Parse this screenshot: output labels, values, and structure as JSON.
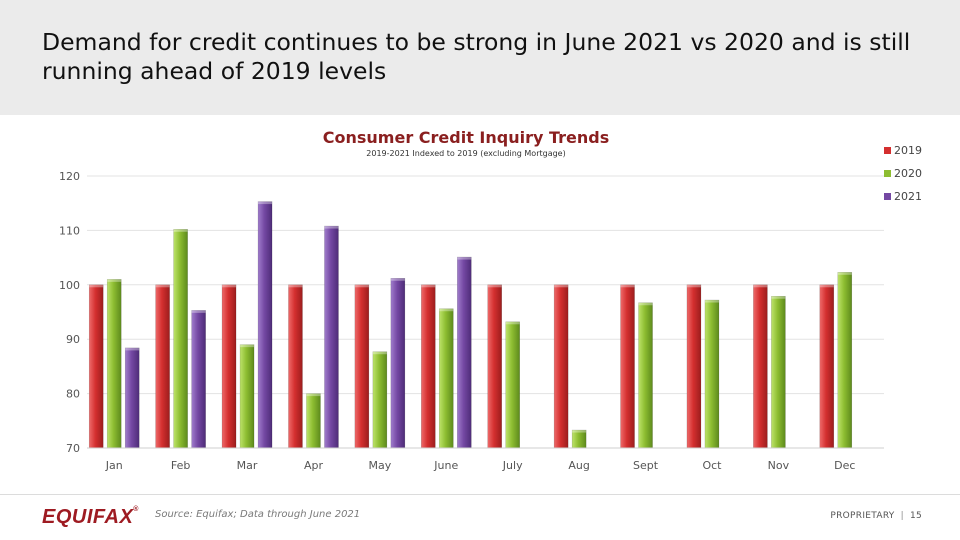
{
  "slide": {
    "title": "Demand for credit continues to be strong in June 2021 vs 2020 and is still running ahead of 2019 levels",
    "source": "Source: Equifax; Data through June 2021",
    "proprietary": "PROPRIETARY",
    "separator": "|",
    "page_number": "15",
    "logo_text": "EQUIFAX",
    "logo_tm": "®"
  },
  "colors": {
    "2019": "#d42f2f",
    "2020": "#8dbd31",
    "2021": "#7448a3",
    "title": "#8a1f1f",
    "grid": "#e3e3e3"
  },
  "chart_data": {
    "type": "bar",
    "title": "Consumer Credit Inquiry Trends",
    "subtitle": "2019-2021 Indexed to 2019 (excluding Mortgage)",
    "xlabel": "",
    "ylabel": "",
    "ylim": [
      70,
      120
    ],
    "yticks": [
      70,
      80,
      90,
      100,
      110,
      120
    ],
    "grid": true,
    "legend_position": "top-right",
    "categories": [
      "Jan",
      "Feb",
      "Mar",
      "Apr",
      "May",
      "June",
      "July",
      "Aug",
      "Sept",
      "Oct",
      "Nov",
      "Dec"
    ],
    "series": [
      {
        "name": "2019",
        "values": [
          100,
          100,
          100,
          100,
          100,
          100,
          100,
          100,
          100,
          100,
          100,
          100
        ]
      },
      {
        "name": "2020",
        "values": [
          101,
          110.2,
          89,
          80,
          87.7,
          95.6,
          93.2,
          73.3,
          96.7,
          97.2,
          97.9,
          102.3
        ]
      },
      {
        "name": "2021",
        "values": [
          88.4,
          95.3,
          115.3,
          110.8,
          101.2,
          105.1,
          null,
          null,
          null,
          null,
          null,
          null
        ]
      }
    ]
  }
}
